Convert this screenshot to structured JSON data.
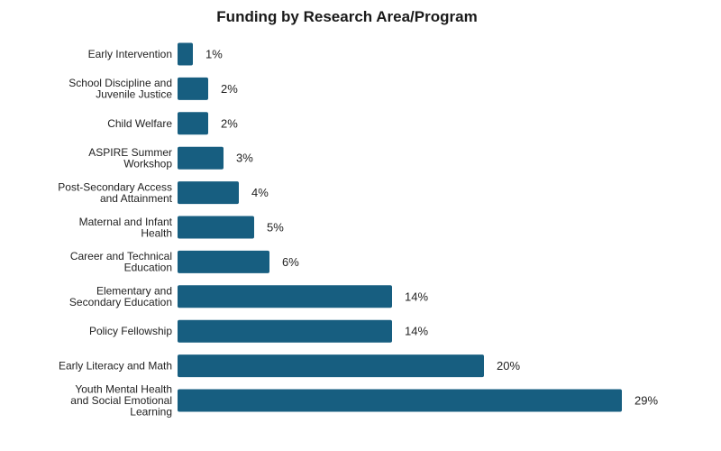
{
  "chart_data": {
    "type": "bar",
    "orientation": "horizontal",
    "title": "Funding by Research Area/Program",
    "xlabel": "",
    "ylabel": "",
    "categories": [
      [
        "Early Intervention"
      ],
      [
        "School Discipline and",
        "Juvenile Justice"
      ],
      [
        "Child Welfare"
      ],
      [
        "ASPIRE Summer",
        "Workshop"
      ],
      [
        "Post-Secondary Access",
        "and Attainment"
      ],
      [
        "Maternal and Infant",
        "Health"
      ],
      [
        "Career and Technical",
        "Education"
      ],
      [
        "Elementary and",
        "Secondary Education"
      ],
      [
        "Policy Fellowship"
      ],
      [
        "Early Literacy and Math"
      ],
      [
        "Youth Mental Health",
        "and Social Emotional",
        "Learning"
      ]
    ],
    "values": [
      1,
      2,
      2,
      3,
      4,
      5,
      6,
      14,
      14,
      20,
      29
    ],
    "value_labels": [
      "1%",
      "2%",
      "2%",
      "3%",
      "4%",
      "5%",
      "6%",
      "14%",
      "14%",
      "20%",
      "29%"
    ],
    "xlim": [
      0,
      29
    ],
    "grid": false,
    "legend": "none",
    "bar_color": "#175e80"
  }
}
